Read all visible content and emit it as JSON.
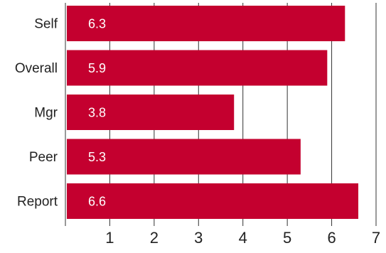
{
  "chart_data": {
    "type": "bar",
    "orientation": "horizontal",
    "categories": [
      "Self",
      "Overall",
      "Mgr",
      "Peer",
      "Report"
    ],
    "values": [
      6.3,
      5.9,
      3.8,
      5.3,
      6.6
    ],
    "data_labels": [
      "6.3",
      "5.9",
      "3.8",
      "5.3",
      "6.6"
    ],
    "xlim": [
      0,
      7
    ],
    "xticks": [
      1,
      2,
      3,
      4,
      5,
      6,
      7
    ],
    "xtick_labels": [
      "1",
      "2",
      "3",
      "4",
      "5",
      "6",
      "7"
    ],
    "grid": "vertical",
    "legend": "none",
    "colors": {
      "bar": "#C4002F",
      "label": "#ffffff",
      "text": "#222222",
      "grid": "#333333"
    }
  }
}
